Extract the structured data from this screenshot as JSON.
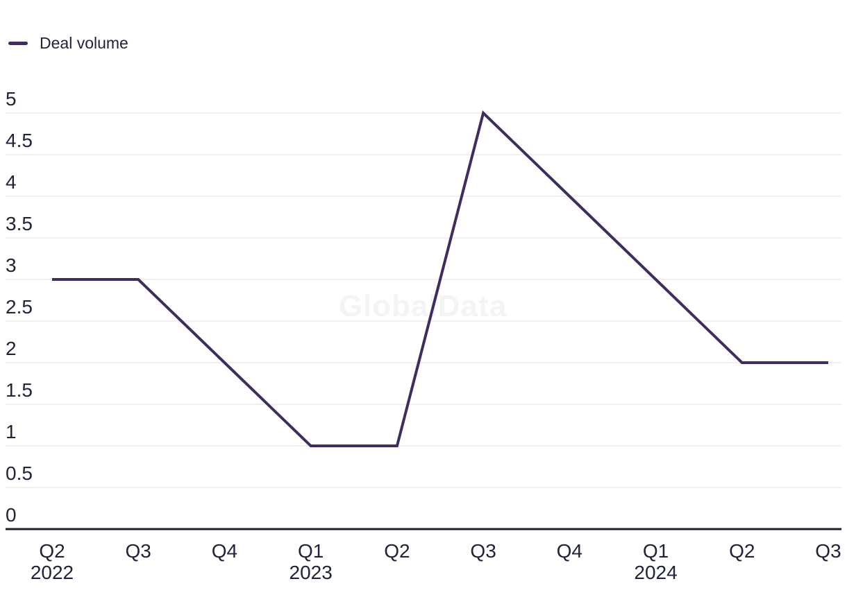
{
  "watermark": "GlobalData",
  "chart_data": {
    "type": "line",
    "title": "",
    "xlabel": "",
    "ylabel": "",
    "legend_position": "top-left",
    "grid": true,
    "categories": [
      "Q2 2022",
      "Q3 2022",
      "Q4 2022",
      "Q1 2023",
      "Q2 2023",
      "Q3 2023",
      "Q4 2023",
      "Q1 2024",
      "Q2 2024",
      "Q3 2024"
    ],
    "series": [
      {
        "name": "Deal volume",
        "values": [
          3,
          3,
          2,
          1,
          1,
          5,
          4,
          3,
          2,
          2
        ]
      }
    ],
    "x_tick_labels": [
      {
        "quarter": "Q2",
        "year": "2022"
      },
      {
        "quarter": "Q3"
      },
      {
        "quarter": "Q4"
      },
      {
        "quarter": "Q1",
        "year": "2023"
      },
      {
        "quarter": "Q2"
      },
      {
        "quarter": "Q3"
      },
      {
        "quarter": "Q4"
      },
      {
        "quarter": "Q1",
        "year": "2024"
      },
      {
        "quarter": "Q2"
      },
      {
        "quarter": "Q3"
      }
    ],
    "y_ticks": [
      0,
      0.5,
      1,
      1.5,
      2,
      2.5,
      3,
      3.5,
      4,
      4.5,
      5
    ],
    "y_tick_labels": [
      "0",
      "0.5",
      "1",
      "1.5",
      "2",
      "2.5",
      "3",
      "3.5",
      "4",
      "4.5",
      "5"
    ],
    "ylim": [
      0,
      5
    ],
    "line_color": "#3e2d5e",
    "grid_color": "#e2e2e2",
    "axis_color": "#1a1e33",
    "text_color": "#20243a",
    "watermark_color": "#f4f4f4"
  }
}
